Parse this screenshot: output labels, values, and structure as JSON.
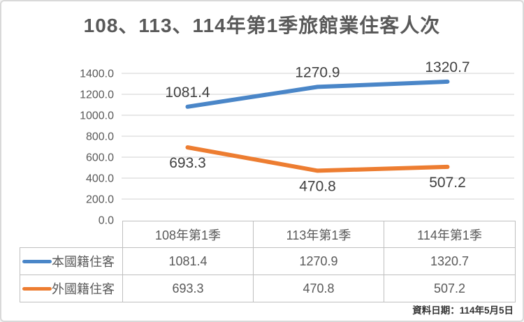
{
  "title": "108、113、114年第1季旅館業住客人次",
  "footer_note": "資料日期：114年5月5日",
  "chart_data": {
    "type": "line",
    "title": "108、113、114年第1季旅館業住客人次",
    "categories": [
      "108年第1季",
      "113年第1季",
      "114年第1季"
    ],
    "series": [
      {
        "name": "本國籍住客",
        "values": [
          1081.4,
          1270.9,
          1320.7
        ],
        "color": "#4A86C8",
        "label_position": "above"
      },
      {
        "name": "外國籍住客",
        "values": [
          693.3,
          470.8,
          507.2
        ],
        "color": "#ED7D31",
        "label_position": "below"
      }
    ],
    "xlabel": "",
    "ylabel": "",
    "ylim": [
      0,
      1400
    ],
    "ytick_step": 200,
    "ytick_labels": [
      "0.0",
      "200.0",
      "400.0",
      "600.0",
      "800.0",
      "1000.0",
      "1200.0",
      "1400.0"
    ],
    "grid": true,
    "legend_position": "table-left"
  },
  "table": {
    "columns": [
      "108年第1季",
      "113年第1季",
      "114年第1季"
    ],
    "rows": [
      {
        "label": "本國籍住客",
        "values": [
          "1081.4",
          "1270.9",
          "1320.7"
        ]
      },
      {
        "label": "外國籍住客",
        "values": [
          "693.3",
          "470.8",
          "507.2"
        ]
      }
    ]
  },
  "colors": {
    "series1": "#4A86C8",
    "series2": "#ED7D31",
    "gridline": "#D9D9D9",
    "axis_text": "#595959",
    "data_label": "#404040",
    "table_border": "#BFBFBF",
    "frame_border": "#D9D9D9"
  }
}
